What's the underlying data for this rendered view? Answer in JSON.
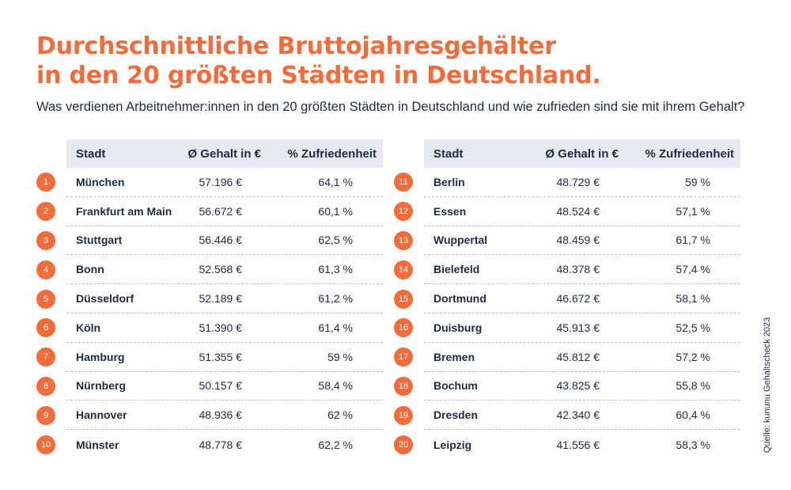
{
  "title_line1": "Durchschnittliche Bruttojahresgehälter",
  "title_line2": "in den 20 größten Städten in Deutschland.",
  "subtitle": "Was verdienen Arbeitnehmer:innen in den 20 größten Städten in Deutschland und wie zufrieden sind sie mit ihrem Gehalt?",
  "headers": {
    "city": "Stadt",
    "salary": "Ø Gehalt in €",
    "satisfaction": "% Zufriedenheit"
  },
  "accent_color": "#f26b3a",
  "left_rows": [
    {
      "rank": "1",
      "city": "München",
      "salary": "57.196 €",
      "satisfaction": "64,1 %"
    },
    {
      "rank": "2",
      "city": "Frankfurt am Main",
      "salary": "56.672 €",
      "satisfaction": "60,1 %"
    },
    {
      "rank": "3",
      "city": "Stuttgart",
      "salary": "56.446 €",
      "satisfaction": "62,5 %"
    },
    {
      "rank": "4",
      "city": "Bonn",
      "salary": "52.568 €",
      "satisfaction": "61,3 %"
    },
    {
      "rank": "5",
      "city": "Düsseldorf",
      "salary": "52.189 €",
      "satisfaction": "61,2 %"
    },
    {
      "rank": "6",
      "city": "Köln",
      "salary": "51.390 €",
      "satisfaction": "61,4 %"
    },
    {
      "rank": "7",
      "city": "Hamburg",
      "salary": "51.355 €",
      "satisfaction": "59 %"
    },
    {
      "rank": "8",
      "city": "Nürnberg",
      "salary": "50.157 €",
      "satisfaction": "58,4 %"
    },
    {
      "rank": "9",
      "city": "Hannover",
      "salary": "48.936 €",
      "satisfaction": "62 %"
    },
    {
      "rank": "10",
      "city": "Münster",
      "salary": "48.778 €",
      "satisfaction": "62,2 %"
    }
  ],
  "right_rows": [
    {
      "rank": "11",
      "city": "Berlin",
      "salary": "48.729 €",
      "satisfaction": "59 %"
    },
    {
      "rank": "12",
      "city": "Essen",
      "salary": "48.524 €",
      "satisfaction": "57,1 %"
    },
    {
      "rank": "13",
      "city": "Wuppertal",
      "salary": "48.459 €",
      "satisfaction": "61,7 %"
    },
    {
      "rank": "14",
      "city": "Bielefeld",
      "salary": "48.378 €",
      "satisfaction": "57,4 %"
    },
    {
      "rank": "15",
      "city": "Dortmund",
      "salary": "46.672 €",
      "satisfaction": "58,1 %"
    },
    {
      "rank": "16",
      "city": "Duisburg",
      "salary": "45.913 €",
      "satisfaction": "52,5 %"
    },
    {
      "rank": "17",
      "city": "Bremen",
      "salary": "45.812 €",
      "satisfaction": "57,2 %"
    },
    {
      "rank": "18",
      "city": "Bochum",
      "salary": "43.825 €",
      "satisfaction": "55,8 %"
    },
    {
      "rank": "19",
      "city": "Dresden",
      "salary": "42.340 €",
      "satisfaction": "60,4 %"
    },
    {
      "rank": "20",
      "city": "Leipzig",
      "salary": "41.556 €",
      "satisfaction": "58,3 %"
    }
  ],
  "source": "Quelle: kununu Gehaltscheck 2023"
}
